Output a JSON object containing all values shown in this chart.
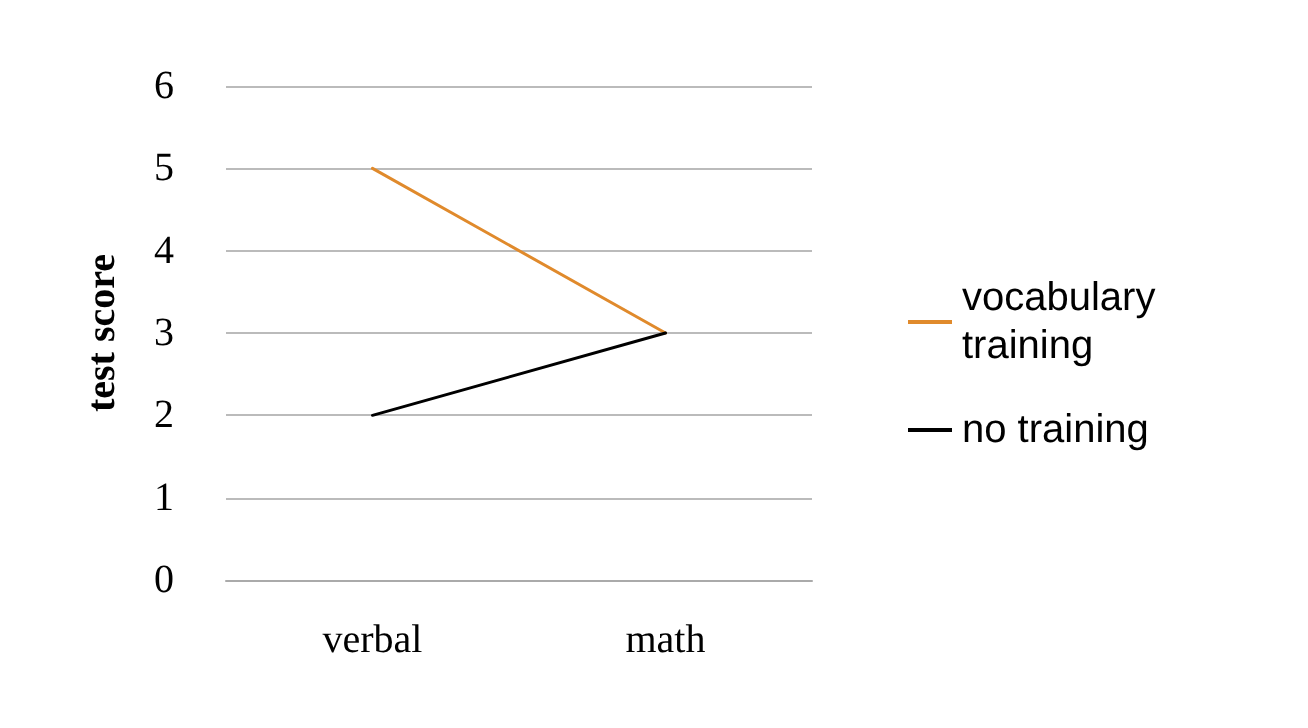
{
  "chart_data": {
    "type": "line",
    "ylabel": "test score",
    "categories": [
      "verbal",
      "math"
    ],
    "series": [
      {
        "name": "vocabulary training",
        "color": "#e08a2c",
        "values": [
          5,
          3
        ]
      },
      {
        "name": "no training",
        "color": "#000000",
        "values": [
          2,
          3
        ]
      }
    ],
    "ylim": [
      0,
      6
    ],
    "yticks": [
      0,
      1,
      2,
      3,
      4,
      5,
      6
    ],
    "grid": "y",
    "legend": "right",
    "marker": "none",
    "line_style": "solid"
  }
}
